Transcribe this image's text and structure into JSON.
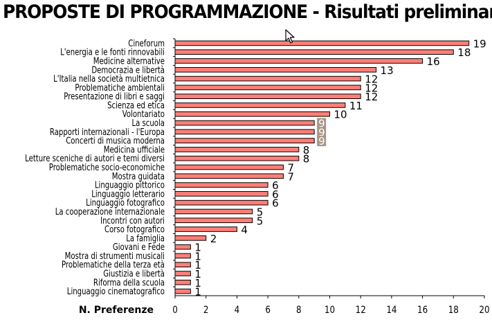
{
  "title": "PROPOSTE DI PROGRAMMAZIONE - Risultati preliminari",
  "chart_data": {
    "type": "bar",
    "orientation": "horizontal",
    "title": "PROPOSTE DI PROGRAMMAZIONE - Risultati preliminari",
    "xlabel": "N. Preferenze",
    "ylabel": "",
    "xlim": [
      0,
      20
    ],
    "xticks": [
      0,
      2,
      4,
      6,
      8,
      10,
      12,
      14,
      16,
      18,
      20
    ],
    "grid": false,
    "bar_color": "#ff7f78",
    "label_highlight_color": "#a89586",
    "categories": [
      "Cineforum",
      "L'energia e le fonti rinnovabili",
      "Medicine alternative",
      "Democrazia e libertà",
      "L'Italia nella società multietnica",
      "Problematiche ambientali",
      "Presentazione di libri e saggi",
      "Scienza ed etica",
      "Volontariato",
      "La scuola",
      "Rapporti internazionali - l'Europa",
      "Concerti di musica moderna",
      "Medicina ufficiale",
      "Letture sceniche di autori e temi diversi",
      "Problematiche socio-economiche",
      "Mostra guidata",
      "Linguaggio pittorico",
      "Linguaggio letterario",
      "Linguaggio fotografico",
      "La cooperazione internazionale",
      "Incontri con autori",
      "Corso fotografico",
      "La famiglia",
      "Giovani e Fede",
      "Mostra di strumenti musicali",
      "Problematiche della terza età",
      "Giustizia e libertà",
      "Riforma della scuola",
      "Linguaggio cinematografico"
    ],
    "values": [
      19,
      18,
      16,
      13,
      12,
      12,
      12,
      11,
      10,
      9,
      9,
      9,
      8,
      8,
      7,
      7,
      6,
      6,
      6,
      5,
      5,
      4,
      2,
      1,
      1,
      1,
      1,
      1,
      1
    ]
  }
}
